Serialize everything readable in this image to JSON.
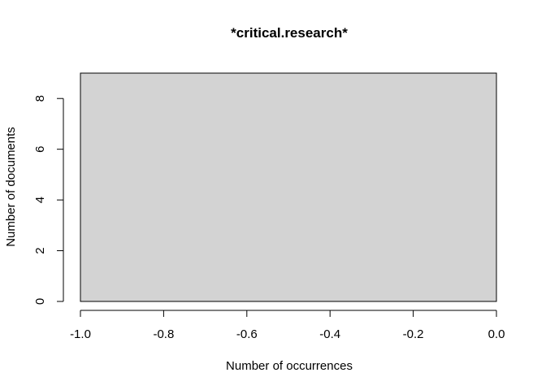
{
  "chart_data": {
    "type": "bar",
    "title": "*critical.research*",
    "xlabel": "Number of occurrences",
    "ylabel": "Number of documents",
    "xlim": [
      -1.0,
      0.0
    ],
    "ylim": [
      0,
      9
    ],
    "x_ticks": [
      -1.0,
      -0.8,
      -0.6,
      -0.4,
      -0.2,
      0.0
    ],
    "x_tick_labels": [
      "-1.0",
      "-0.8",
      "-0.6",
      "-0.4",
      "-0.2",
      "0.0"
    ],
    "y_ticks": [
      0,
      2,
      4,
      6,
      8
    ],
    "y_tick_labels": [
      "0",
      "2",
      "4",
      "6",
      "8"
    ],
    "bins": [
      {
        "start": -1.0,
        "end": 0.0,
        "count": 9
      }
    ],
    "bar_fill": "#d3d3d3",
    "grid": false,
    "legend": "none"
  }
}
